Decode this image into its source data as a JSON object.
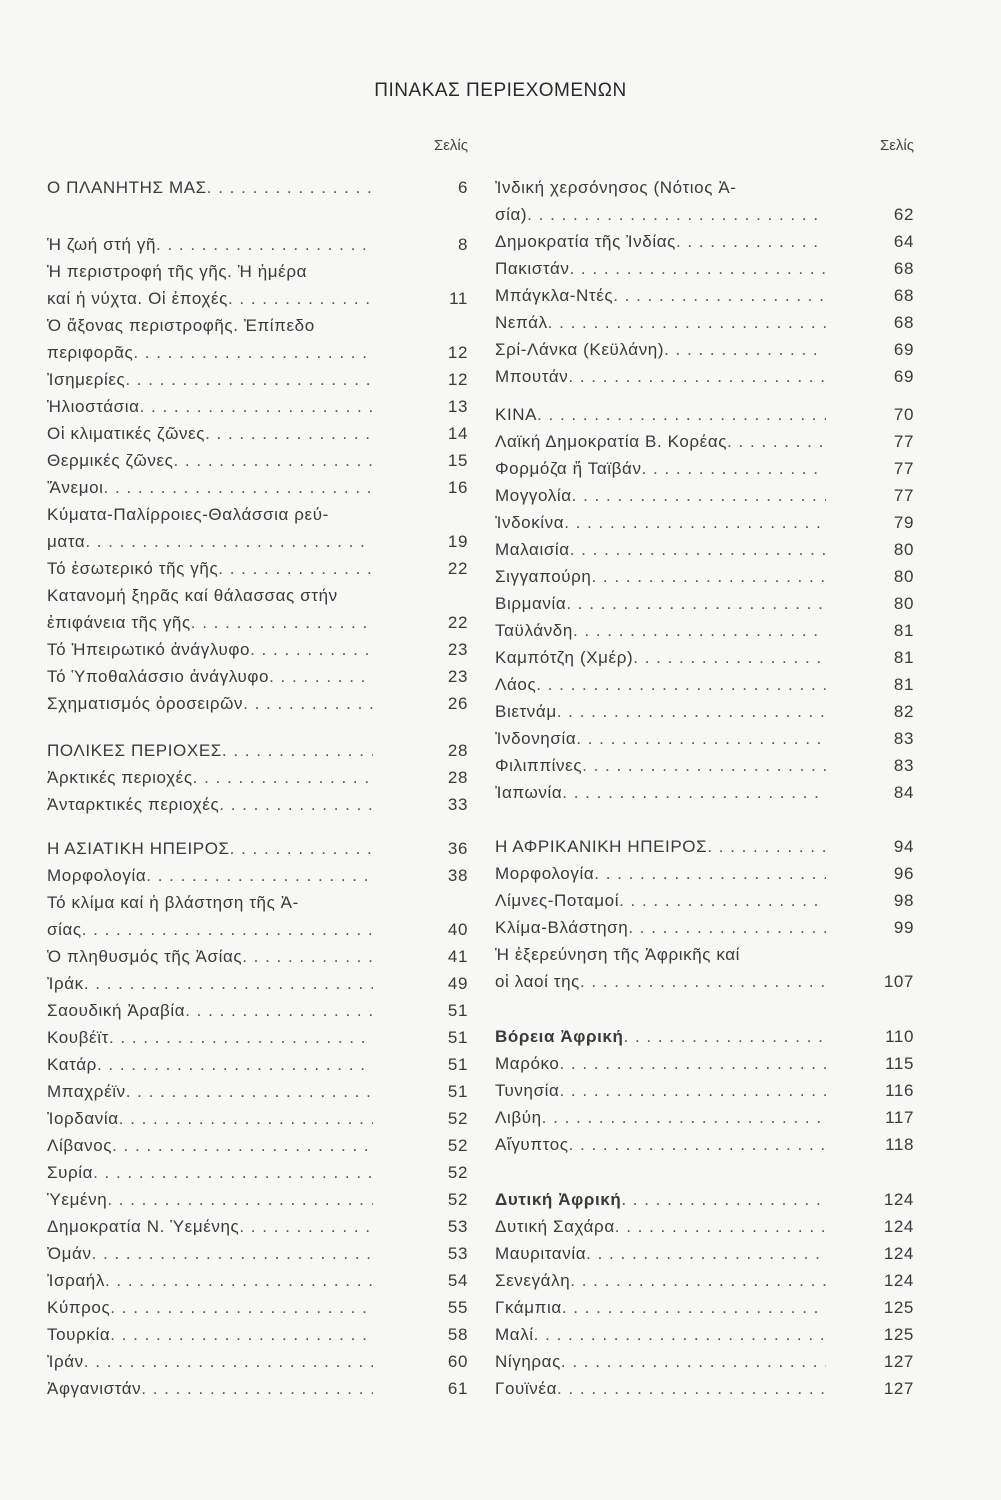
{
  "title": "ΠΙΝΑΚΑΣ ΠΕΡΙΕΧΟΜΕΝΩΝ",
  "page_header": "Σελίς",
  "left": [
    {
      "id": "L1",
      "entries": [
        {
          "lines": [
            "Ο ΠΛΑΝΗΤΗΣ ΜΑΣ"
          ],
          "page": "6"
        }
      ]
    },
    {
      "id": "L2",
      "entries": [
        {
          "lines": [
            "Ἡ ζωή στή γῆ"
          ],
          "page": "8"
        },
        {
          "lines": [
            "Ἡ περιστροφή τῆς γῆς. Ἡ ἡμέρα",
            "καί ἡ νύχτα. Οἱ ἐποχές"
          ],
          "page": "11"
        },
        {
          "lines": [
            "Ὁ ἄξονας περιστροφῆς. Ἐπίπεδο",
            "περιφορᾶς"
          ],
          "page": "12"
        },
        {
          "lines": [
            "Ἰσημερίες"
          ],
          "page": "12"
        },
        {
          "lines": [
            "Ἡλιοστάσια"
          ],
          "page": "13"
        },
        {
          "lines": [
            "Οἱ κλιματικές ζῶνες"
          ],
          "page": "14"
        },
        {
          "lines": [
            "Θερμικές ζῶνες"
          ],
          "page": "15"
        },
        {
          "lines": [
            "Ἄνεμοι"
          ],
          "page": "16"
        },
        {
          "lines": [
            "Κύματα-Παλίρροιες-Θαλάσσια ρεύ-",
            "ματα"
          ],
          "page": "19"
        },
        {
          "lines": [
            "Τό ἐσωτερικό τῆς γῆς"
          ],
          "page": "22"
        },
        {
          "lines": [
            "Κατανομή ξηρᾶς καί θάλασσας στήν",
            "ἐπιφάνεια τῆς γῆς"
          ],
          "page": "22"
        },
        {
          "lines": [
            "Τό Ἠπειρωτικό ἀνάγλυφο"
          ],
          "page": "23"
        },
        {
          "lines": [
            "Τό Ὑποθαλάσσιο ἀνάγλυφο"
          ],
          "page": "23"
        },
        {
          "lines": [
            "Σχηματισμός ὀροσειρῶν"
          ],
          "page": "26"
        }
      ]
    },
    {
      "id": "L3",
      "entries": [
        {
          "lines": [
            "ΠΟΛΙΚΕΣ ΠΕΡΙΟΧΕΣ"
          ],
          "page": "28"
        },
        {
          "lines": [
            "Ἀρκτικές περιοχές"
          ],
          "page": "28"
        },
        {
          "lines": [
            "Ἀνταρκτικές περιοχές"
          ],
          "page": "33"
        }
      ]
    },
    {
      "id": "L4",
      "entries": [
        {
          "lines": [
            "Η ΑΣΙΑΤΙΚΗ ΗΠΕΙΡΟΣ"
          ],
          "page": "36"
        },
        {
          "lines": [
            "Μορφολογία"
          ],
          "page": "38"
        },
        {
          "lines": [
            "Τό κλίμα καί ἡ βλάστηση τῆς Ἀ-",
            "σίας"
          ],
          "page": "40"
        },
        {
          "lines": [
            "Ὁ πληθυσμός τῆς Ἀσίας"
          ],
          "page": "41"
        },
        {
          "lines": [
            "Ἰράκ"
          ],
          "page": "49"
        },
        {
          "lines": [
            "Σαουδική Ἀραβία"
          ],
          "page": "51"
        },
        {
          "lines": [
            "Κουβέϊτ"
          ],
          "page": "51"
        },
        {
          "lines": [
            "Κατάρ"
          ],
          "page": "51"
        },
        {
          "lines": [
            "Μπαχρέϊν"
          ],
          "page": "51"
        },
        {
          "lines": [
            "Ἰορδανία"
          ],
          "page": "52"
        },
        {
          "lines": [
            "Λίβανος"
          ],
          "page": "52"
        },
        {
          "lines": [
            "Συρία"
          ],
          "page": "52"
        },
        {
          "lines": [
            "Ὑεμένη"
          ],
          "page": "52"
        },
        {
          "lines": [
            "Δημοκρατία Ν. Ὑεμένης"
          ],
          "page": "53"
        },
        {
          "lines": [
            "Ὀμάν"
          ],
          "page": "53"
        },
        {
          "lines": [
            "Ἰσραήλ"
          ],
          "page": "54"
        },
        {
          "lines": [
            "Κύπρος"
          ],
          "page": "55"
        },
        {
          "lines": [
            "Τουρκία"
          ],
          "page": "58"
        },
        {
          "lines": [
            "Ἰράν"
          ],
          "page": "60"
        },
        {
          "lines": [
            "Ἀφγανιστάν"
          ],
          "page": "61"
        }
      ]
    }
  ],
  "right": [
    {
      "id": "R1",
      "entries": [
        {
          "lines": [
            "Ἰνδική χερσόνησος (Νότιος Ἀ-",
            "σία)"
          ],
          "page": "62"
        },
        {
          "lines": [
            "Δημοκρατία τῆς Ἰνδίας"
          ],
          "page": "64"
        },
        {
          "lines": [
            "Πακιστάν"
          ],
          "page": "68"
        },
        {
          "lines": [
            "Μπάγκλα-Ντές"
          ],
          "page": "68"
        },
        {
          "lines": [
            "Νεπάλ"
          ],
          "page": "68"
        },
        {
          "lines": [
            "Σρί-Λάνκα (Κεϋλάνη)"
          ],
          "page": "69"
        },
        {
          "lines": [
            "Μπουτάν"
          ],
          "page": "69"
        }
      ]
    },
    {
      "id": "R2",
      "entries": [
        {
          "lines": [
            "ΚΙΝΑ"
          ],
          "page": "70"
        },
        {
          "lines": [
            "Λαϊκή Δημοκρατία Β. Κορέας"
          ],
          "page": "77"
        },
        {
          "lines": [
            "Φορμόζα ἤ Ταϊβάν"
          ],
          "page": "77"
        },
        {
          "lines": [
            "Μογγολία"
          ],
          "page": "77"
        },
        {
          "lines": [
            "Ἰνδοκίνα"
          ],
          "page": "79"
        },
        {
          "lines": [
            "Μαλαισία"
          ],
          "page": "80"
        },
        {
          "lines": [
            "Σιγγαπούρη"
          ],
          "page": "80"
        },
        {
          "lines": [
            "Βιρμανία"
          ],
          "page": "80"
        },
        {
          "lines": [
            "Ταϋλάνδη"
          ],
          "page": "81"
        },
        {
          "lines": [
            "Καμπότζη (Χμέρ)"
          ],
          "page": "81"
        },
        {
          "lines": [
            "Λάος"
          ],
          "page": "81"
        },
        {
          "lines": [
            "Βιετνάμ"
          ],
          "page": "82"
        },
        {
          "lines": [
            "Ἰνδονησία"
          ],
          "page": "83"
        },
        {
          "lines": [
            "Φιλιππίνες"
          ],
          "page": "83"
        },
        {
          "lines": [
            "Ἰαπωνία"
          ],
          "page": "84"
        }
      ]
    },
    {
      "id": "R3",
      "entries": [
        {
          "lines": [
            "Η ΑΦΡΙΚΑΝΙΚΗ ΗΠΕΙΡΟΣ"
          ],
          "page": "94"
        },
        {
          "lines": [
            "Μορφολογία"
          ],
          "page": "96"
        },
        {
          "lines": [
            "Λίμνες-Ποταμοί"
          ],
          "page": "98"
        },
        {
          "lines": [
            "Κλίμα-Βλάστηση"
          ],
          "page": "99"
        },
        {
          "lines": [
            "Ἡ ἐξερεύνηση τῆς Ἀφρικῆς καί",
            "οἱ λαοί της"
          ],
          "page": "107"
        }
      ]
    },
    {
      "id": "R4",
      "entries": [
        {
          "lines": [
            "Βόρεια Ἀφρική"
          ],
          "page": "110",
          "bold": true
        },
        {
          "lines": [
            "Μαρόκο"
          ],
          "page": "115"
        },
        {
          "lines": [
            "Τυνησία"
          ],
          "page": "116"
        },
        {
          "lines": [
            "Λιβύη"
          ],
          "page": "117"
        },
        {
          "lines": [
            "Αἴγυπτος"
          ],
          "page": "118"
        }
      ]
    },
    {
      "id": "R5",
      "entries": [
        {
          "lines": [
            "Δυτική Ἀφρική"
          ],
          "page": "124",
          "bold": true
        },
        {
          "lines": [
            "Δυτική Σαχάρα"
          ],
          "page": "124"
        },
        {
          "lines": [
            "Μαυριτανία"
          ],
          "page": "124"
        },
        {
          "lines": [
            "Σενεγάλη"
          ],
          "page": "124"
        },
        {
          "lines": [
            "Γκάμπια"
          ],
          "page": "125"
        },
        {
          "lines": [
            "Μαλί"
          ],
          "page": "125"
        },
        {
          "lines": [
            "Νίγηρας"
          ],
          "page": "127"
        },
        {
          "lines": [
            "Γουϊνέα"
          ],
          "page": "127"
        }
      ]
    }
  ]
}
